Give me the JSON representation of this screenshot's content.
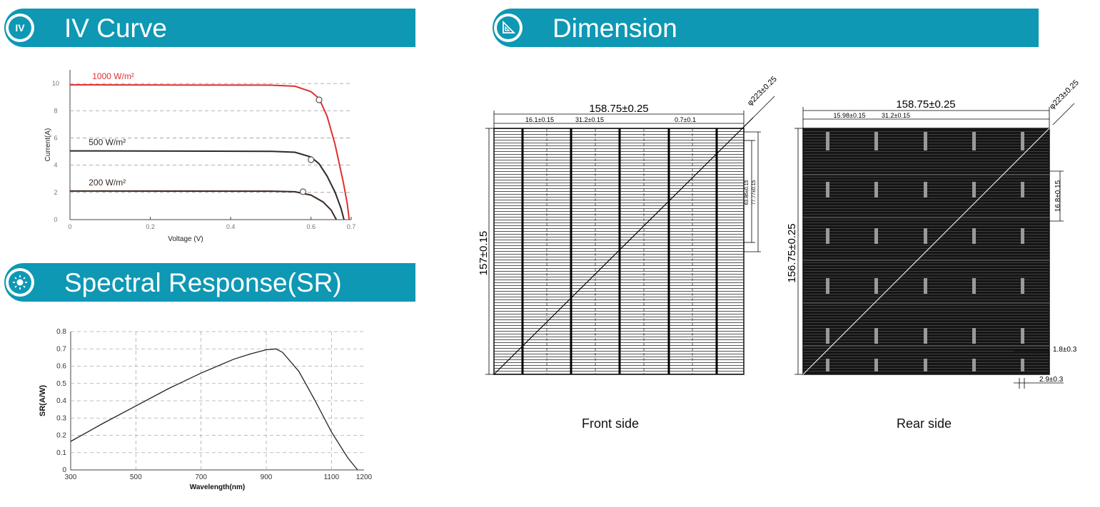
{
  "colors": {
    "accent": "#0e98b4",
    "red_curve": "#e03030",
    "dark_curve": "#2a2a2a"
  },
  "iv_section": {
    "title": "IV Curve",
    "icon": "iv-icon",
    "icon_text": "IV"
  },
  "sr_section": {
    "title": "Spectral Response(SR)",
    "icon": "sun-icon"
  },
  "dim_section": {
    "title": "Dimension",
    "icon": "triangle-ruler-icon"
  },
  "chart_data": [
    {
      "type": "line",
      "xlabel": "Voltage  (V)",
      "ylabel": "Current(A)",
      "xlim": [
        0,
        0.7
      ],
      "ylim": [
        0,
        11
      ],
      "x_ticks": [
        "0",
        "0.2",
        "0.4",
        "0.6",
        "0.7"
      ],
      "y_ticks": [
        "0",
        "2",
        "4",
        "6",
        "8",
        "10"
      ],
      "grid": "horizontal dashed",
      "series": [
        {
          "name": "1000 W/m²",
          "color": "#e03030",
          "points": [
            [
              0,
              9.9
            ],
            [
              0.5,
              9.88
            ],
            [
              0.56,
              9.8
            ],
            [
              0.6,
              9.4
            ],
            [
              0.62,
              8.9
            ],
            [
              0.64,
              7.6
            ],
            [
              0.66,
              5.5
            ],
            [
              0.68,
              2.8
            ],
            [
              0.69,
              1.2
            ],
            [
              0.695,
              0
            ]
          ],
          "marker": [
            0.62,
            8.8
          ]
        },
        {
          "name": "500 W/m²",
          "color": "#2a2a2a",
          "points": [
            [
              0,
              5.05
            ],
            [
              0.5,
              5.02
            ],
            [
              0.56,
              4.95
            ],
            [
              0.6,
              4.6
            ],
            [
              0.62,
              4.1
            ],
            [
              0.64,
              3.2
            ],
            [
              0.66,
              2.0
            ],
            [
              0.675,
              0.8
            ],
            [
              0.682,
              0
            ]
          ],
          "marker": [
            0.6,
            4.4
          ]
        },
        {
          "name": "200 W/m²",
          "color": "#3a2a22",
          "points": [
            [
              0,
              2.1
            ],
            [
              0.5,
              2.09
            ],
            [
              0.56,
              2.05
            ],
            [
              0.6,
              1.8
            ],
            [
              0.63,
              1.3
            ],
            [
              0.65,
              0.7
            ],
            [
              0.663,
              0
            ]
          ],
          "marker": [
            0.58,
            2.05
          ]
        }
      ]
    },
    {
      "type": "line",
      "xlabel": "Wavelength(nm)",
      "ylabel": "SR(A/W)",
      "xlim": [
        300,
        1200
      ],
      "ylim": [
        0,
        0.8
      ],
      "x_ticks": [
        "300",
        "500",
        "700",
        "900",
        "1100",
        "1200"
      ],
      "y_ticks": [
        "0",
        "0.1",
        "0.2",
        "0.3",
        "0.4",
        "0.5",
        "0.6",
        "0.7",
        "0.8"
      ],
      "grid": "dashed",
      "series": [
        {
          "color": "#222222",
          "points": [
            [
              300,
              0.165
            ],
            [
              400,
              0.27
            ],
            [
              500,
              0.37
            ],
            [
              600,
              0.47
            ],
            [
              700,
              0.56
            ],
            [
              800,
              0.64
            ],
            [
              850,
              0.67
            ],
            [
              900,
              0.695
            ],
            [
              930,
              0.7
            ],
            [
              950,
              0.68
            ],
            [
              1000,
              0.57
            ],
            [
              1050,
              0.4
            ],
            [
              1100,
              0.22
            ],
            [
              1150,
              0.07
            ],
            [
              1180,
              0
            ]
          ]
        }
      ]
    }
  ],
  "front_side": {
    "caption": "Front side",
    "width": "158.75±0.25",
    "height": "157±0.15",
    "diag": "φ223±0.25",
    "dim_a": "16.1±0.15",
    "dim_b": "31.2±0.15",
    "dim_c": "0.7±0.1",
    "dim_v1": "63.86±0.15",
    "dim_v2": "77.77±0.15"
  },
  "rear_side": {
    "caption": "Rear side",
    "width": "158.75±0.25",
    "height": "156.75±0.25",
    "diag": "φ223±0.25",
    "dim_a": "15.98±0.15",
    "dim_b": "31.2±0.15",
    "dim_v": "16.8±0.15",
    "dim_r1": "1.8±0.3",
    "dim_r2": "2.9±0.3"
  }
}
